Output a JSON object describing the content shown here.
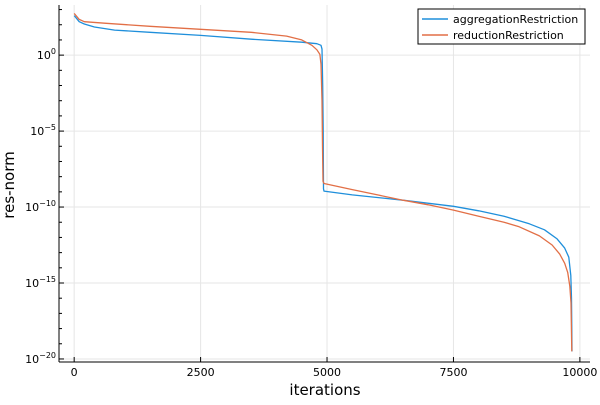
{
  "chart_data": {
    "type": "line",
    "title": "",
    "xlabel": "iterations",
    "ylabel": "res-norm",
    "xlim": [
      -300,
      10200
    ],
    "ylim_log10": [
      -20.2,
      3.3
    ],
    "y_scale": "log10",
    "grid": true,
    "legend_position": "top-right",
    "x_ticks": [
      {
        "value": 0,
        "label": "0"
      },
      {
        "value": 2500,
        "label": "2500"
      },
      {
        "value": 5000,
        "label": "5000"
      },
      {
        "value": 7500,
        "label": "7500"
      },
      {
        "value": 10000,
        "label": "10000"
      }
    ],
    "y_ticks": [
      {
        "exp": 0,
        "label_base": "10",
        "label_exp": "0"
      },
      {
        "exp": -5,
        "label_base": "10",
        "label_exp": "−5"
      },
      {
        "exp": -10,
        "label_base": "10",
        "label_exp": "−10"
      },
      {
        "exp": -15,
        "label_base": "10",
        "label_exp": "−15"
      },
      {
        "exp": -20,
        "label_base": "10",
        "label_exp": "−20"
      }
    ],
    "series": [
      {
        "name": "aggregationRestriction",
        "color": "#1f8fdb",
        "points_log10": [
          [
            0,
            2.6
          ],
          [
            100,
            2.2
          ],
          [
            200,
            2.05
          ],
          [
            400,
            1.85
          ],
          [
            800,
            1.65
          ],
          [
            1500,
            1.5
          ],
          [
            2500,
            1.3
          ],
          [
            3500,
            1.05
          ],
          [
            4500,
            0.85
          ],
          [
            4800,
            0.75
          ],
          [
            4880,
            0.65
          ],
          [
            4900,
            0.4
          ],
          [
            4915,
            -2.0
          ],
          [
            4925,
            -5.0
          ],
          [
            4930,
            -8.8
          ],
          [
            4940,
            -8.95
          ],
          [
            5500,
            -9.2
          ],
          [
            6500,
            -9.55
          ],
          [
            7500,
            -9.95
          ],
          [
            8000,
            -10.25
          ],
          [
            8500,
            -10.6
          ],
          [
            9000,
            -11.1
          ],
          [
            9300,
            -11.5
          ],
          [
            9550,
            -12.1
          ],
          [
            9700,
            -12.7
          ],
          [
            9780,
            -13.3
          ],
          [
            9820,
            -14.5
          ],
          [
            9835,
            -16.0
          ],
          [
            9845,
            -19.5
          ]
        ]
      },
      {
        "name": "reductionRestriction",
        "color": "#e26f46",
        "points_log10": [
          [
            0,
            2.75
          ],
          [
            100,
            2.35
          ],
          [
            200,
            2.2
          ],
          [
            600,
            2.1
          ],
          [
            1500,
            1.9
          ],
          [
            2500,
            1.7
          ],
          [
            3500,
            1.5
          ],
          [
            4200,
            1.25
          ],
          [
            4500,
            1.0
          ],
          [
            4700,
            0.65
          ],
          [
            4800,
            0.35
          ],
          [
            4860,
            0.05
          ],
          [
            4880,
            -0.6
          ],
          [
            4900,
            -3.0
          ],
          [
            4910,
            -6.0
          ],
          [
            4920,
            -8.3
          ],
          [
            4940,
            -8.45
          ],
          [
            5500,
            -8.85
          ],
          [
            6000,
            -9.2
          ],
          [
            6500,
            -9.55
          ],
          [
            7000,
            -9.85
          ],
          [
            7500,
            -10.2
          ],
          [
            8000,
            -10.6
          ],
          [
            8500,
            -11.0
          ],
          [
            8800,
            -11.3
          ],
          [
            9200,
            -11.9
          ],
          [
            9450,
            -12.5
          ],
          [
            9600,
            -13.1
          ],
          [
            9700,
            -13.7
          ],
          [
            9760,
            -14.3
          ],
          [
            9800,
            -15.2
          ],
          [
            9825,
            -16.3
          ],
          [
            9840,
            -19.5
          ]
        ]
      }
    ]
  }
}
